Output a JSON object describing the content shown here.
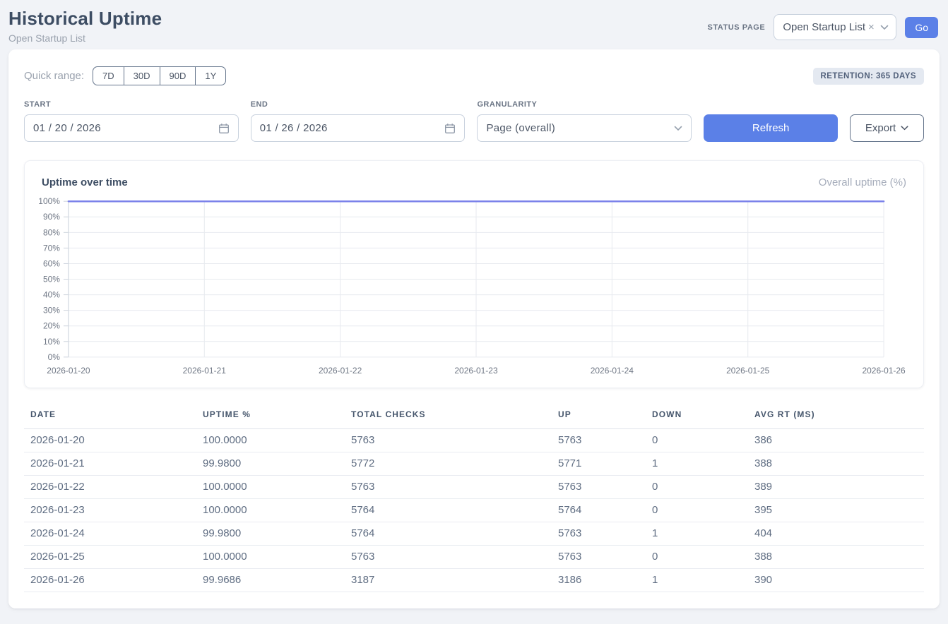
{
  "page": {
    "title": "Historical Uptime",
    "subtitle": "Open Startup List"
  },
  "header": {
    "status_page_label": "STATUS PAGE",
    "select_value": "Open Startup List",
    "clear_icon": "×",
    "go_label": "Go"
  },
  "controls": {
    "quick_range_label": "Quick range:",
    "quick_ranges": [
      "7D",
      "30D",
      "90D",
      "1Y"
    ],
    "retention_badge": "RETENTION: 365 DAYS",
    "start": {
      "label": "START",
      "value": "01 / 20 / 2026"
    },
    "end": {
      "label": "END",
      "value": "01 / 26 / 2026"
    },
    "granularity": {
      "label": "GRANULARITY",
      "value": "Page (overall)"
    },
    "refresh_label": "Refresh",
    "export_label": "Export"
  },
  "chart": {
    "title": "Uptime over time",
    "legend": "Overall uptime (%)"
  },
  "chart_data": {
    "type": "line",
    "title": "Uptime over time",
    "x": [
      "2026-01-20",
      "2026-01-21",
      "2026-01-22",
      "2026-01-23",
      "2026-01-24",
      "2026-01-25",
      "2026-01-26"
    ],
    "series": [
      {
        "name": "Overall uptime (%)",
        "values": [
          100.0,
          99.98,
          100.0,
          100.0,
          99.98,
          100.0,
          99.9686
        ],
        "color": "#7b82ea"
      }
    ],
    "ylim": [
      0,
      100
    ],
    "ytick_step": 10,
    "ytick_suffix": "%",
    "grid": true,
    "legend_position": "top-right"
  },
  "table": {
    "columns": [
      "DATE",
      "UPTIME %",
      "TOTAL CHECKS",
      "UP",
      "DOWN",
      "AVG RT (MS)"
    ],
    "rows": [
      [
        "2026-01-20",
        "100.0000",
        "5763",
        "5763",
        "0",
        "386"
      ],
      [
        "2026-01-21",
        "99.9800",
        "5772",
        "5771",
        "1",
        "388"
      ],
      [
        "2026-01-22",
        "100.0000",
        "5763",
        "5763",
        "0",
        "389"
      ],
      [
        "2026-01-23",
        "100.0000",
        "5764",
        "5764",
        "0",
        "395"
      ],
      [
        "2026-01-24",
        "99.9800",
        "5764",
        "5763",
        "1",
        "404"
      ],
      [
        "2026-01-25",
        "100.0000",
        "5763",
        "5763",
        "0",
        "388"
      ],
      [
        "2026-01-26",
        "99.9686",
        "3187",
        "3186",
        "1",
        "390"
      ]
    ]
  },
  "colors": {
    "accent": "#5b80e7",
    "chart_line": "#7b82ea",
    "gridline": "#e7eaef",
    "axis": "#ccd3dc",
    "tick_label": "#6e7684"
  }
}
